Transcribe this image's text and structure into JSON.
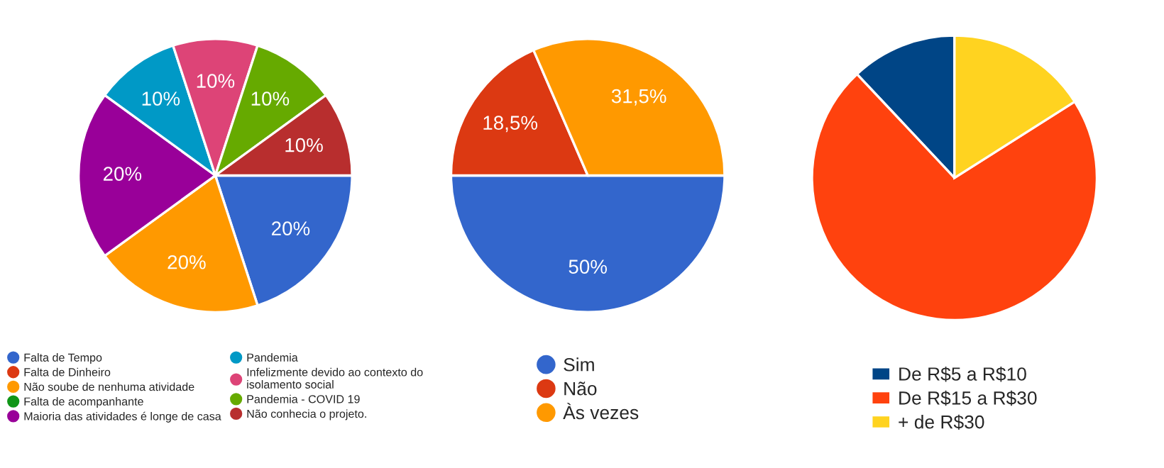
{
  "chart_data": [
    {
      "type": "pie",
      "categories": [
        "Falta de Tempo",
        "Falta de Dinheiro",
        "Não soube de nenhuma atividade",
        "Falta de acompanhante",
        "Maioria das atividades é longe de casa",
        "Pandemia",
        "Infelizmente devido ao contexto do isolamento social",
        "Pandemia - COVID 19",
        "Não conhecia o projeto."
      ],
      "values": [
        20,
        0,
        20,
        0,
        20,
        10,
        10,
        10,
        10
      ],
      "colors": [
        "#3366cc",
        "#dc3912",
        "#ff9900",
        "#109618",
        "#990099",
        "#0099c6",
        "#dd4477",
        "#66aa00",
        "#b82e2e"
      ],
      "value_labels": [
        "20%",
        null,
        "20%",
        null,
        "20%",
        "10%",
        "10%",
        "10%",
        "10%"
      ],
      "legend": "bottom"
    },
    {
      "type": "pie",
      "categories": [
        "Sim",
        "Não",
        "Às vezes"
      ],
      "values": [
        50,
        18.5,
        31.5
      ],
      "colors": [
        "#3366cc",
        "#dc3912",
        "#ff9900"
      ],
      "value_labels": [
        "50%",
        "18,5%",
        "31,5%"
      ],
      "legend": "bottom"
    },
    {
      "type": "pie",
      "categories": [
        "De R$5 a R$10",
        "De R$15 a R$30",
        "+ de R$30"
      ],
      "values": [
        12,
        72,
        16
      ],
      "colors": [
        "#004586",
        "#ff420e",
        "#ffd320"
      ],
      "legend": "bottom"
    }
  ]
}
